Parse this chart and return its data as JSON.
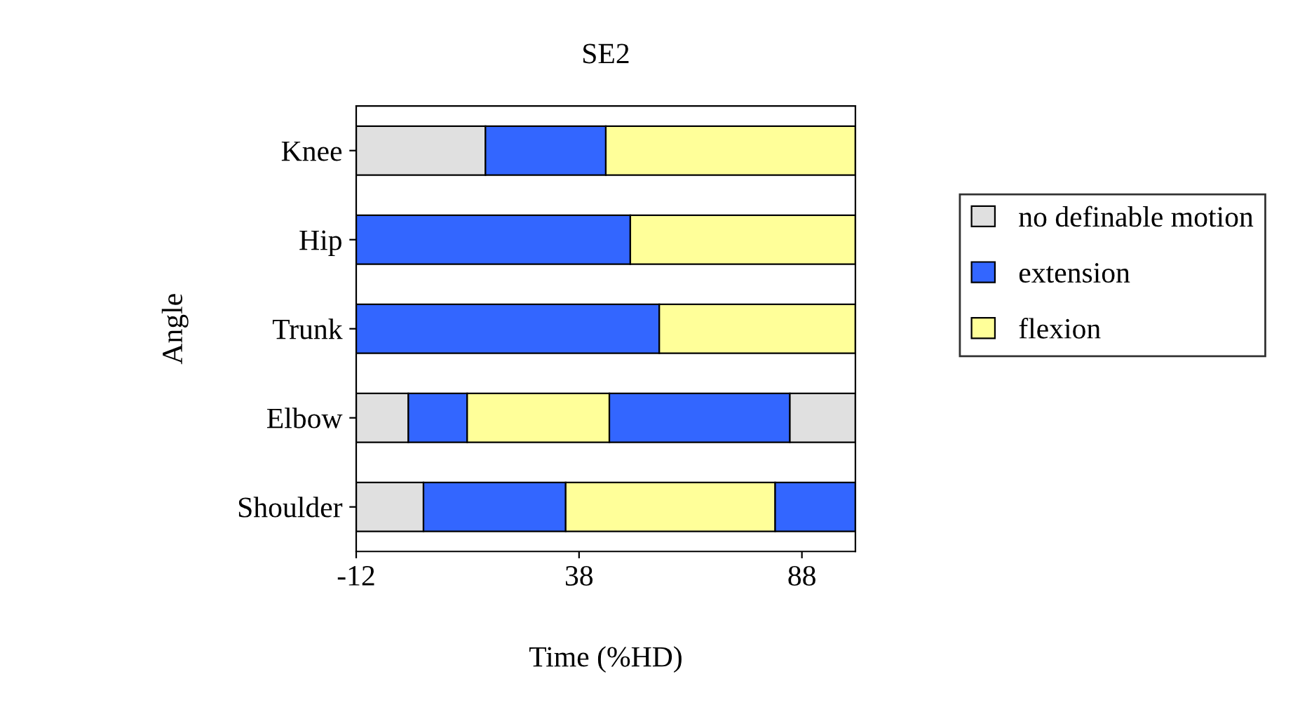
{
  "chart_data": {
    "type": "bar",
    "orientation": "horizontal",
    "title": "SE2",
    "xlabel": "Time (%HD)",
    "ylabel": "Angle",
    "categories": [
      "Knee",
      "Hip",
      "Trunk",
      "Elbow",
      "Shoulder"
    ],
    "series": [
      {
        "name": "no definable motion",
        "color": "#e0e0e0",
        "base": [
          -12,
          null,
          null,
          -12,
          -12
        ],
        "values": [
          29,
          null,
          null,
          11.7,
          15.1
        ]
      },
      {
        "name": "extension",
        "color": "#3366ff",
        "base": [
          17,
          -12,
          -12,
          -0.3,
          3.1
        ],
        "values": [
          27,
          61.5,
          68,
          13.2,
          31.9
        ]
      },
      {
        "name": "flexion",
        "color": "#ffff99",
        "base": [
          44,
          49.5,
          56,
          12.9,
          35
        ],
        "values": [
          56,
          50.5,
          44,
          31.9,
          47
        ]
      },
      {
        "color": "#3366ff",
        "base": [
          null,
          null,
          null,
          44.8,
          82
        ],
        "values": [
          null,
          null,
          null,
          40.5,
          18
        ]
      },
      {
        "color": "#e0e0e0",
        "base": [
          null,
          null,
          null,
          85.3,
          null
        ],
        "values": [
          null,
          null,
          null,
          14.7,
          null
        ]
      }
    ],
    "xlim": [
      -12,
      100
    ],
    "xticks": [
      -12,
      38,
      88
    ],
    "legend": "right"
  }
}
